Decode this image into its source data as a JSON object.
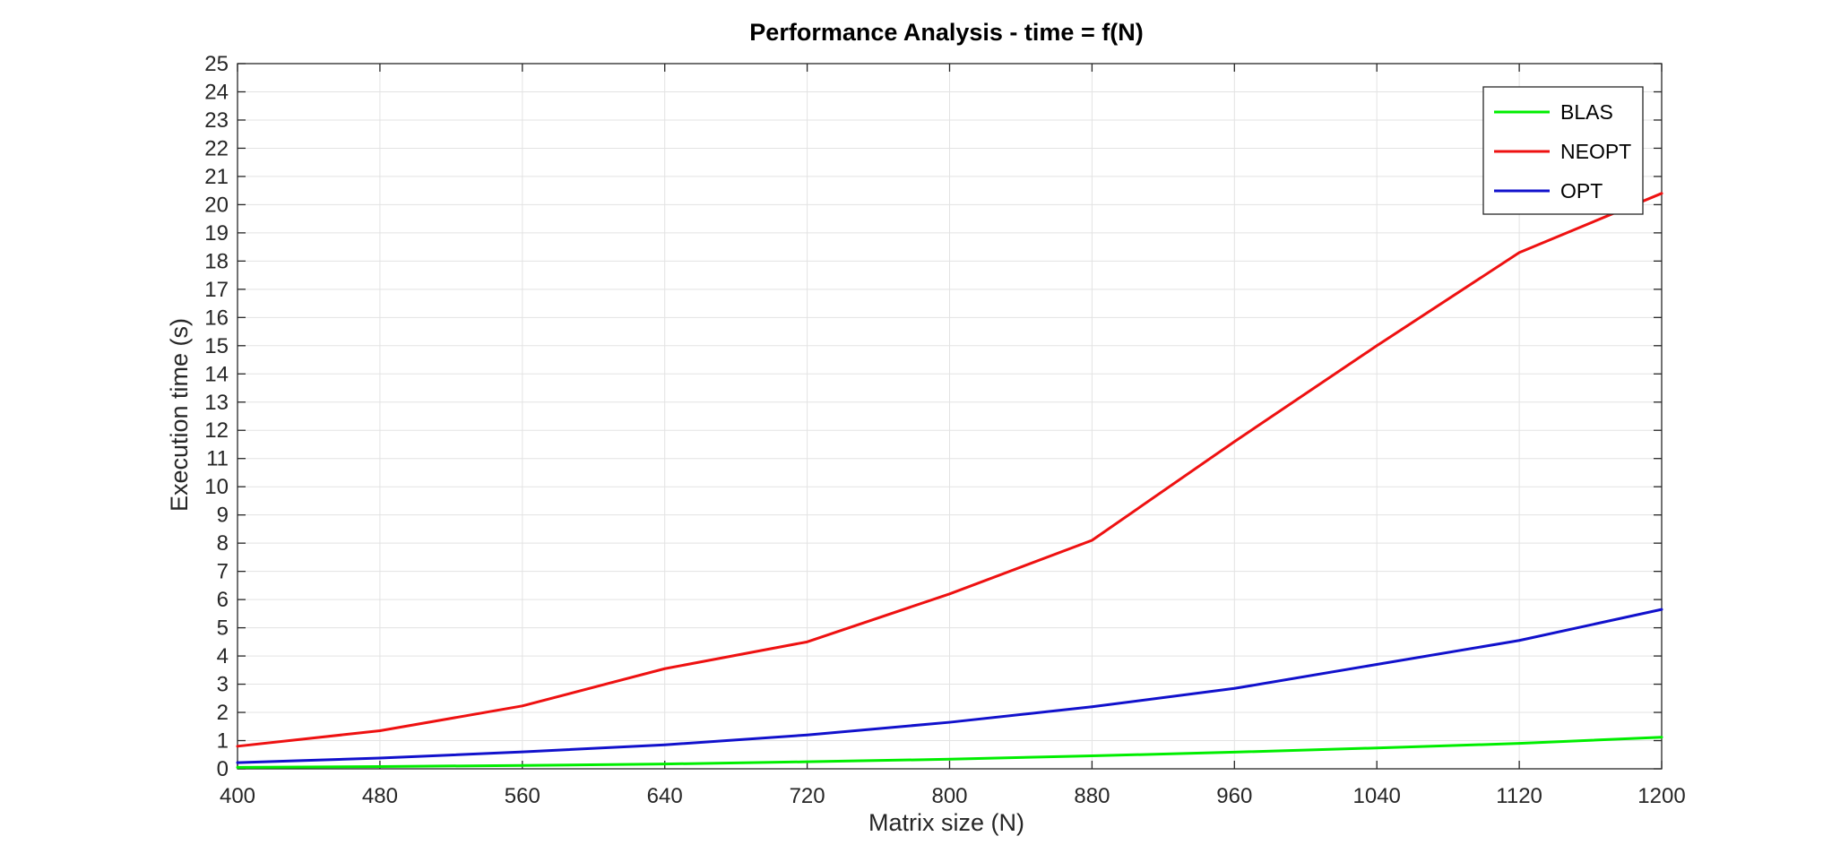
{
  "chart_data": {
    "type": "line",
    "title": "Performance Analysis - time = f(N)",
    "xlabel": "Matrix size (N)",
    "ylabel": "Execution time (s)",
    "x": [
      400,
      480,
      560,
      640,
      720,
      800,
      880,
      960,
      1040,
      1120,
      1200
    ],
    "xlim": [
      400,
      1200
    ],
    "ylim": [
      0,
      25
    ],
    "xticks": [
      400,
      480,
      560,
      640,
      720,
      800,
      880,
      960,
      1040,
      1120,
      1200
    ],
    "yticks": [
      0,
      1,
      2,
      3,
      4,
      5,
      6,
      7,
      8,
      9,
      10,
      11,
      12,
      13,
      14,
      15,
      16,
      17,
      18,
      19,
      20,
      21,
      22,
      23,
      24,
      25
    ],
    "grid": true,
    "legend_position": "top-right",
    "series": [
      {
        "name": "BLAS",
        "color": "#00ee00",
        "values": [
          0.05,
          0.08,
          0.12,
          0.17,
          0.25,
          0.34,
          0.46,
          0.59,
          0.74,
          0.9,
          1.12
        ]
      },
      {
        "name": "NEOPT",
        "color": "#ee1111",
        "values": [
          0.8,
          1.35,
          2.23,
          3.55,
          4.5,
          6.2,
          8.1,
          11.6,
          15.0,
          18.3,
          20.4
        ]
      },
      {
        "name": "OPT",
        "color": "#1111cc",
        "values": [
          0.22,
          0.38,
          0.6,
          0.85,
          1.2,
          1.65,
          2.2,
          2.85,
          3.7,
          4.55,
          5.65
        ]
      }
    ]
  }
}
